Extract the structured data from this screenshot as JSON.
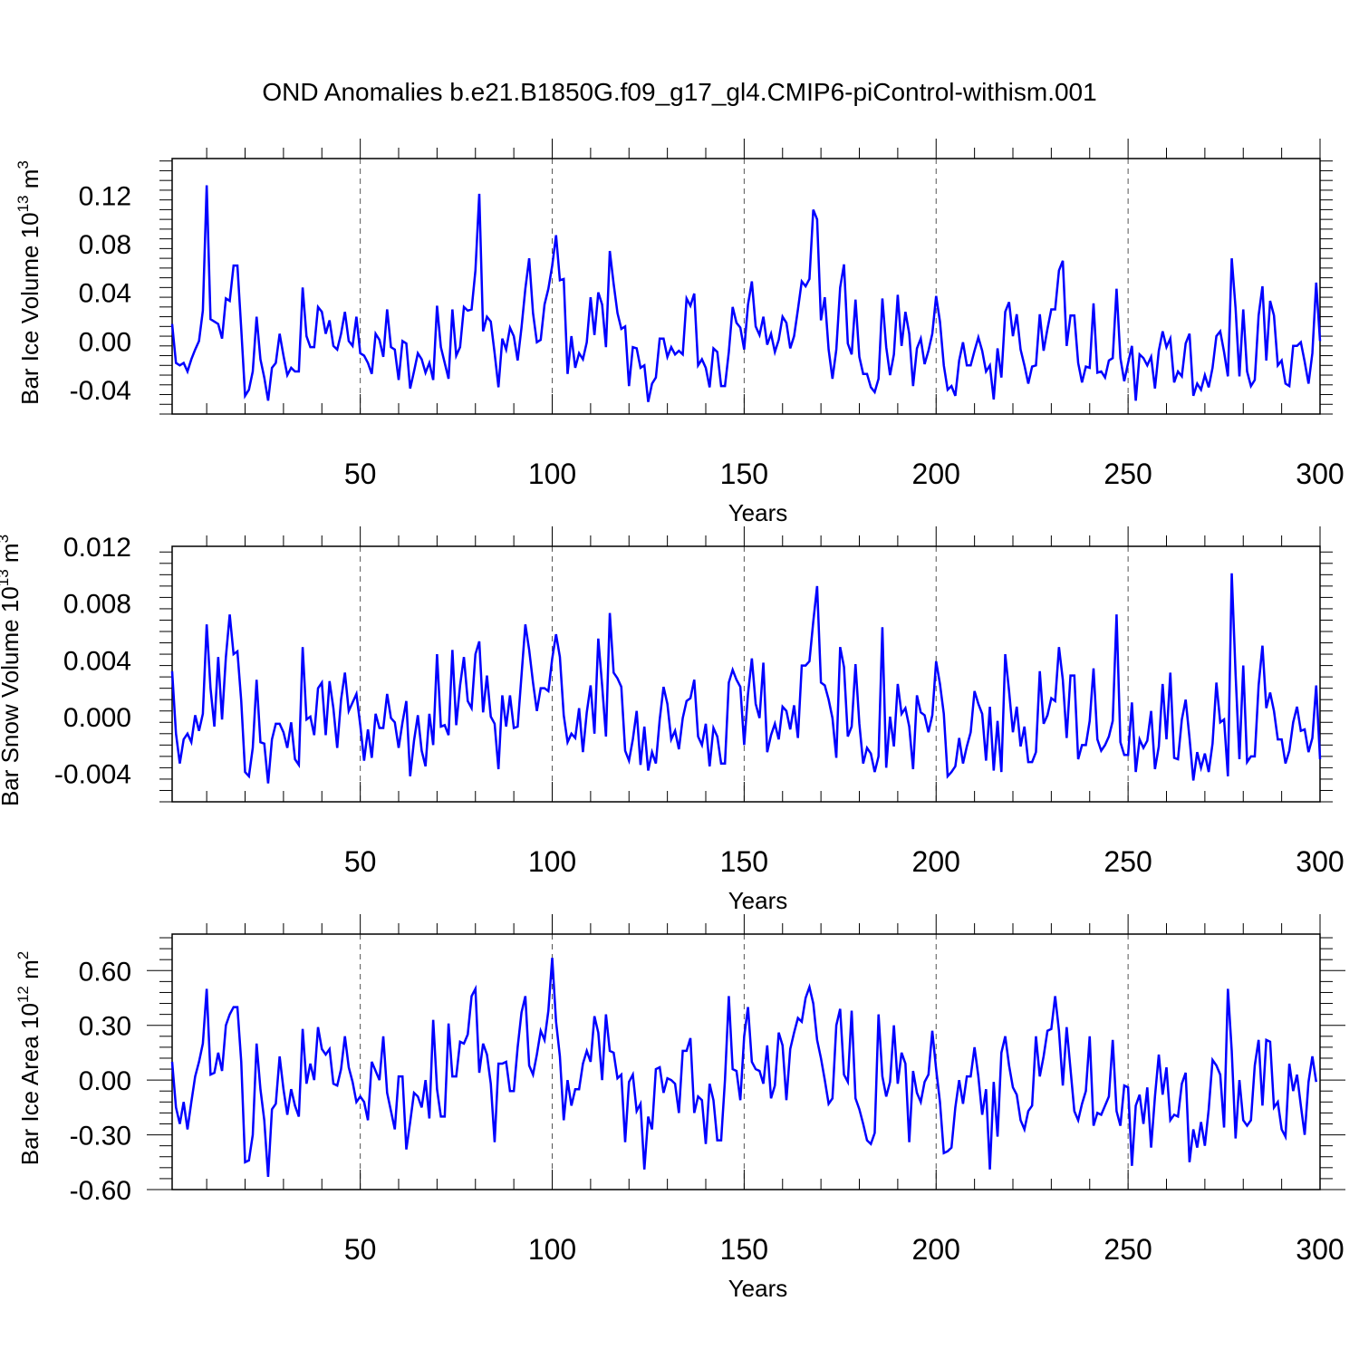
{
  "title": "OND Anomalies b.e21.B1850G.f09_g17_gl4.CMIP6-piControl-withism.001",
  "chart_data": [
    {
      "type": "line",
      "ylabel": "Bar Ice Volume 10",
      "ylabel_sup": "13",
      "ylabel_unit": " m",
      "ylabel_unit_sup": "3",
      "xlabel": "Years",
      "xlim": [
        1,
        300
      ],
      "ylim": [
        -0.06,
        0.15
      ],
      "yticks": [
        -0.04,
        0.0,
        0.04,
        0.08,
        0.12
      ],
      "ytick_labels": [
        "-0.04",
        "0.00",
        "0.04",
        "0.08",
        "0.12"
      ],
      "xticks": [
        50,
        100,
        150,
        200,
        250,
        300
      ],
      "xtick_labels": [
        "50",
        "100",
        "150",
        "200",
        "250",
        "300"
      ],
      "line_color": "#0000ff",
      "x_start": 1,
      "values": [
        0.014,
        -0.018,
        -0.02,
        -0.018,
        -0.025,
        -0.015,
        -0.007,
        0.0,
        0.025,
        0.128,
        0.018,
        0.016,
        0.014,
        0.002,
        0.035,
        0.033,
        0.062,
        0.062,
        0.01,
        -0.045,
        -0.04,
        -0.025,
        0.02,
        -0.015,
        -0.03,
        -0.049,
        -0.022,
        -0.018,
        0.006,
        -0.012,
        -0.028,
        -0.022,
        -0.025,
        -0.025,
        0.044,
        0.004,
        -0.005,
        -0.005,
        0.028,
        0.024,
        0.006,
        0.017,
        -0.004,
        -0.007,
        0.006,
        0.024,
        0.0,
        -0.004,
        0.02,
        -0.01,
        -0.012,
        -0.018,
        -0.027,
        0.006,
        0.001,
        -0.013,
        0.026,
        -0.005,
        -0.007,
        -0.032,
        0.0,
        -0.002,
        -0.039,
        -0.025,
        -0.01,
        -0.015,
        -0.026,
        -0.018,
        -0.032,
        0.029,
        -0.005,
        -0.018,
        -0.031,
        0.026,
        -0.012,
        -0.005,
        0.028,
        0.025,
        0.026,
        0.058,
        0.121,
        0.008,
        0.02,
        0.016,
        -0.01,
        -0.038,
        0.002,
        -0.007,
        0.011,
        0.004,
        -0.016,
        0.011,
        0.043,
        0.068,
        0.023,
        -0.001,
        0.001,
        0.03,
        0.043,
        0.062,
        0.087,
        0.05,
        0.051,
        -0.027,
        0.004,
        -0.022,
        -0.01,
        -0.015,
        -0.001,
        0.036,
        0.005,
        0.04,
        0.03,
        -0.005,
        0.074,
        0.047,
        0.023,
        0.01,
        0.012,
        -0.037,
        -0.005,
        -0.006,
        -0.022,
        -0.02,
        -0.05,
        -0.035,
        -0.03,
        0.002,
        0.002,
        -0.013,
        -0.005,
        -0.011,
        -0.008,
        -0.011,
        0.035,
        0.029,
        0.039,
        -0.02,
        -0.015,
        -0.022,
        -0.038,
        -0.006,
        -0.009,
        -0.037,
        -0.037,
        -0.009,
        0.028,
        0.015,
        0.011,
        -0.007,
        0.03,
        0.049,
        0.012,
        0.005,
        0.02,
        -0.003,
        0.006,
        -0.009,
        0.001,
        0.02,
        0.015,
        -0.006,
        0.004,
        0.026,
        0.049,
        0.045,
        0.051,
        0.108,
        0.1,
        0.017,
        0.036,
        -0.007,
        -0.031,
        -0.007,
        0.044,
        0.063,
        -0.002,
        -0.011,
        0.034,
        -0.013,
        -0.027,
        -0.027,
        -0.038,
        -0.042,
        -0.031,
        0.035,
        -0.005,
        -0.028,
        -0.011,
        0.038,
        -0.004,
        0.024,
        0.006,
        -0.037,
        -0.006,
        0.002,
        -0.019,
        -0.008,
        0.006,
        0.037,
        0.016,
        -0.02,
        -0.04,
        -0.037,
        -0.045,
        -0.016,
        -0.001,
        -0.02,
        -0.02,
        -0.008,
        0.003,
        -0.008,
        -0.025,
        -0.02,
        -0.048,
        -0.006,
        -0.03,
        0.024,
        0.032,
        0.004,
        0.022,
        -0.007,
        -0.02,
        -0.035,
        -0.021,
        -0.02,
        0.022,
        -0.008,
        0.01,
        0.026,
        0.026,
        0.058,
        0.066,
        -0.004,
        0.021,
        0.021,
        -0.018,
        -0.034,
        -0.021,
        -0.022,
        0.031,
        -0.026,
        -0.025,
        -0.03,
        -0.016,
        -0.014,
        0.043,
        -0.014,
        -0.033,
        -0.018,
        -0.004,
        -0.049,
        -0.011,
        -0.014,
        -0.02,
        -0.013,
        -0.039,
        -0.008,
        0.008,
        -0.005,
        0.002,
        -0.034,
        -0.025,
        -0.029,
        -0.002,
        0.006,
        -0.045,
        -0.035,
        -0.04,
        -0.028,
        -0.038,
        -0.022,
        0.004,
        0.008,
        -0.009,
        -0.029,
        0.068,
        0.027,
        -0.029,
        0.026,
        -0.025,
        -0.037,
        -0.032,
        0.021,
        0.045,
        -0.016,
        0.033,
        0.021,
        -0.02,
        -0.016,
        -0.035,
        -0.037,
        -0.004,
        -0.004,
        -0.001,
        -0.017,
        -0.035,
        -0.01,
        0.048,
        0.0
      ]
    },
    {
      "type": "line",
      "ylabel": "Bar Snow Volume 10",
      "ylabel_sup": "13",
      "ylabel_unit": " m",
      "ylabel_unit_sup": "3",
      "xlabel": "Years",
      "xlim": [
        1,
        300
      ],
      "ylim": [
        -0.006,
        0.012
      ],
      "yticks": [
        -0.004,
        0.0,
        0.004,
        0.008,
        0.012
      ],
      "ytick_labels": [
        "-0.004",
        "0.000",
        "0.004",
        "0.008",
        "0.012"
      ],
      "xticks": [
        50,
        100,
        150,
        200,
        250,
        300
      ],
      "xtick_labels": [
        "50",
        "100",
        "150",
        "200",
        "250",
        "300"
      ],
      "line_color": "#0000ff",
      "x_start": 1,
      "values": [
        0.0032,
        -0.0012,
        -0.0033,
        -0.0016,
        -0.0012,
        -0.0018,
        0.0001,
        -0.001,
        0.0002,
        0.0065,
        0.002,
        -0.0007,
        0.0042,
        -0.0002,
        0.0042,
        0.0072,
        0.0044,
        0.0046,
        0.0011,
        -0.0039,
        -0.0042,
        -0.0022,
        0.0026,
        -0.0018,
        -0.0019,
        -0.0047,
        -0.0016,
        -0.0005,
        -0.0005,
        -0.0011,
        -0.0022,
        -0.0004,
        -0.003,
        -0.0034,
        0.0049,
        -0.0002,
        0.0,
        -0.0013,
        0.002,
        0.0024,
        -0.0013,
        0.0025,
        0.0006,
        -0.0022,
        0.0012,
        0.0031,
        0.0004,
        0.001,
        0.0016,
        -0.0006,
        -0.0031,
        -0.0009,
        -0.0029,
        0.0002,
        -0.0008,
        -0.0008,
        0.0016,
        -0.0001,
        -0.0004,
        -0.0022,
        -0.0004,
        0.0011,
        -0.0042,
        -0.0017,
        0.0001,
        -0.0024,
        -0.0035,
        0.0002,
        -0.002,
        0.0044,
        -0.0007,
        -0.0006,
        -0.0013,
        0.0047,
        -0.0006,
        0.0022,
        0.0042,
        0.0011,
        0.0006,
        0.0044,
        0.0053,
        0.0003,
        0.0029,
        0.0,
        -0.0005,
        -0.0037,
        0.0015,
        -0.0007,
        0.0015,
        -0.0008,
        -0.0007,
        0.0029,
        0.0065,
        0.0047,
        0.0024,
        0.0004,
        0.002,
        0.002,
        0.0018,
        0.0041,
        0.0058,
        0.0042,
        0.0001,
        -0.0018,
        -0.0012,
        -0.0015,
        0.0006,
        -0.0025,
        0.0003,
        0.0022,
        -0.0012,
        0.0055,
        0.0022,
        -0.0014,
        0.0073,
        0.0031,
        0.0027,
        0.0021,
        -0.0024,
        -0.0031,
        -0.0016,
        0.0004,
        -0.0034,
        -0.0007,
        -0.0038,
        -0.0025,
        -0.0033,
        -0.0002,
        0.0021,
        0.0009,
        -0.0016,
        -0.001,
        -0.0023,
        -0.0001,
        0.0011,
        0.0013,
        0.0026,
        -0.0014,
        -0.002,
        -0.0005,
        -0.0035,
        -0.0008,
        -0.0014,
        -0.0033,
        -0.0033,
        0.0024,
        0.0033,
        0.0026,
        0.0021,
        -0.002,
        0.0016,
        0.0041,
        0.0009,
        -0.0001,
        0.0038,
        -0.0025,
        -0.0013,
        -0.0005,
        -0.0016,
        0.0007,
        0.0004,
        -0.0009,
        0.0008,
        -0.0015,
        0.0036,
        0.0036,
        0.0039,
        0.0067,
        0.0092,
        0.0024,
        0.0022,
        0.0012,
        -0.0001,
        -0.0029,
        0.0049,
        0.0035,
        -0.0014,
        -0.0007,
        0.0037,
        -0.0005,
        -0.0033,
        -0.0022,
        -0.0026,
        -0.0039,
        -0.0028,
        0.0063,
        -0.0036,
        0.0,
        -0.0021,
        0.0023,
        0.0002,
        0.0006,
        -0.0007,
        -0.0037,
        0.0015,
        0.0003,
        0.0001,
        -0.0011,
        0.0001,
        0.0039,
        0.0023,
        0.0002,
        -0.0042,
        -0.0039,
        -0.0035,
        -0.0015,
        -0.0033,
        -0.0021,
        -0.0011,
        0.0018,
        0.0009,
        0.0002,
        -0.0031,
        0.0007,
        -0.0038,
        -0.0003,
        -0.0039,
        0.0044,
        0.0018,
        -0.0011,
        0.0007,
        -0.0021,
        -0.0007,
        -0.0032,
        -0.0032,
        -0.0025,
        0.0032,
        -0.0005,
        0.0001,
        0.0013,
        0.0011,
        0.0049,
        0.0026,
        -0.0015,
        0.0029,
        0.0029,
        -0.003,
        -0.002,
        -0.002,
        -0.0003,
        0.0034,
        -0.0016,
        -0.0024,
        -0.002,
        -0.0014,
        -0.0003,
        0.0072,
        -0.0018,
        -0.0027,
        -0.0027,
        0.001,
        -0.0039,
        -0.0016,
        -0.0022,
        -0.0017,
        0.0004,
        -0.0037,
        -0.0021,
        0.0023,
        -0.0016,
        0.0031,
        -0.0029,
        -0.003,
        -0.0002,
        0.0012,
        -0.0015,
        -0.0045,
        -0.0025,
        -0.0036,
        -0.0026,
        -0.0039,
        -0.0019,
        0.0024,
        -0.0004,
        -0.0002,
        -0.0042,
        0.0101,
        0.003,
        -0.003,
        0.0036,
        -0.0032,
        -0.0028,
        -0.0028,
        0.0022,
        0.005,
        0.0006,
        0.0017,
        0.0004,
        -0.0016,
        -0.0016,
        -0.0033,
        -0.0024,
        -0.0004,
        0.0007,
        -0.001,
        -0.0009,
        -0.0025,
        -0.0015,
        0.0022,
        -0.003
      ]
    },
    {
      "type": "line",
      "ylabel": "Bar Ice Area 10",
      "ylabel_sup": "12",
      "ylabel_unit": " m",
      "ylabel_unit_sup": "2",
      "xlabel": "Years",
      "xlim": [
        1,
        300
      ],
      "ylim": [
        -0.6,
        0.8
      ],
      "yticks": [
        -0.6,
        -0.3,
        0.0,
        0.3,
        0.6
      ],
      "ytick_labels": [
        "-0.60",
        "-0.30",
        "0.00",
        "0.30",
        "0.60"
      ],
      "xticks": [
        50,
        100,
        150,
        200,
        250,
        300
      ],
      "xtick_labels": [
        "50",
        "100",
        "150",
        "200",
        "250",
        "300"
      ],
      "line_color": "#0000ff",
      "x_start": 1,
      "values": [
        0.1,
        -0.15,
        -0.24,
        -0.12,
        -0.27,
        -0.12,
        0.02,
        0.1,
        0.2,
        0.5,
        0.03,
        0.04,
        0.15,
        0.05,
        0.3,
        0.36,
        0.4,
        0.4,
        0.1,
        -0.45,
        -0.44,
        -0.3,
        0.2,
        -0.05,
        -0.22,
        -0.53,
        -0.16,
        -0.13,
        0.13,
        -0.05,
        -0.19,
        -0.05,
        -0.14,
        -0.2,
        0.28,
        -0.02,
        0.09,
        0.0,
        0.29,
        0.17,
        0.14,
        0.17,
        -0.02,
        -0.03,
        0.06,
        0.24,
        0.07,
        -0.01,
        -0.12,
        -0.09,
        -0.12,
        -0.22,
        0.1,
        0.05,
        0.0,
        0.24,
        -0.07,
        -0.17,
        -0.27,
        0.02,
        0.02,
        -0.38,
        -0.23,
        -0.07,
        -0.09,
        -0.15,
        0.0,
        -0.21,
        0.33,
        -0.05,
        -0.2,
        -0.2,
        0.31,
        0.02,
        0.02,
        0.21,
        0.2,
        0.25,
        0.46,
        0.5,
        0.04,
        0.2,
        0.14,
        -0.02,
        -0.34,
        0.09,
        0.09,
        0.1,
        -0.06,
        -0.06,
        0.18,
        0.37,
        0.46,
        0.08,
        0.03,
        0.14,
        0.27,
        0.22,
        0.38,
        0.67,
        0.32,
        0.13,
        -0.22,
        0.0,
        -0.14,
        -0.05,
        -0.05,
        0.09,
        0.16,
        0.1,
        0.35,
        0.26,
        0.0,
        0.36,
        0.16,
        0.15,
        0.01,
        0.03,
        -0.34,
        -0.01,
        0.03,
        -0.17,
        -0.13,
        -0.49,
        -0.2,
        -0.27,
        0.06,
        0.07,
        -0.07,
        0.01,
        0.0,
        -0.02,
        -0.18,
        0.16,
        0.16,
        0.23,
        -0.18,
        -0.09,
        -0.11,
        -0.35,
        -0.02,
        -0.11,
        -0.33,
        -0.33,
        0.0,
        0.46,
        0.06,
        0.05,
        -0.11,
        0.24,
        0.4,
        0.1,
        0.06,
        0.05,
        -0.02,
        0.19,
        -0.1,
        -0.03,
        0.26,
        0.19,
        -0.11,
        0.17,
        0.26,
        0.34,
        0.32,
        0.45,
        0.51,
        0.42,
        0.22,
        0.12,
        0.0,
        -0.13,
        -0.1,
        0.3,
        0.39,
        0.03,
        -0.01,
        0.38,
        -0.1,
        -0.16,
        -0.24,
        -0.33,
        -0.35,
        -0.29,
        0.36,
        0.02,
        -0.09,
        -0.01,
        0.3,
        -0.02,
        0.15,
        0.09,
        -0.34,
        0.05,
        -0.07,
        -0.12,
        -0.01,
        0.03,
        0.27,
        0.06,
        -0.12,
        -0.4,
        -0.39,
        -0.37,
        -0.15,
        0.0,
        -0.13,
        0.02,
        0.02,
        0.18,
        0.02,
        -0.19,
        -0.05,
        -0.49,
        -0.01,
        -0.31,
        0.15,
        0.24,
        0.08,
        -0.04,
        -0.08,
        -0.22,
        -0.27,
        -0.17,
        -0.14,
        0.24,
        0.02,
        0.13,
        0.27,
        0.28,
        0.46,
        0.27,
        -0.03,
        0.29,
        0.06,
        -0.17,
        -0.22,
        -0.13,
        -0.06,
        0.24,
        -0.25,
        -0.18,
        -0.19,
        -0.14,
        -0.09,
        0.22,
        -0.17,
        -0.25,
        -0.03,
        -0.04,
        -0.47,
        -0.14,
        -0.08,
        -0.24,
        -0.04,
        -0.37,
        -0.09,
        0.14,
        -0.08,
        0.07,
        -0.22,
        -0.19,
        -0.2,
        -0.02,
        0.04,
        -0.45,
        -0.27,
        -0.37,
        -0.23,
        -0.36,
        -0.16,
        0.11,
        0.08,
        0.03,
        -0.26,
        0.5,
        0.16,
        -0.32,
        0.0,
        -0.22,
        -0.25,
        -0.22,
        0.08,
        0.22,
        -0.14,
        0.22,
        0.21,
        -0.15,
        -0.12,
        -0.27,
        -0.31,
        0.09,
        -0.06,
        0.03,
        -0.14,
        -0.3,
        -0.01,
        0.13,
        -0.01
      ]
    }
  ]
}
